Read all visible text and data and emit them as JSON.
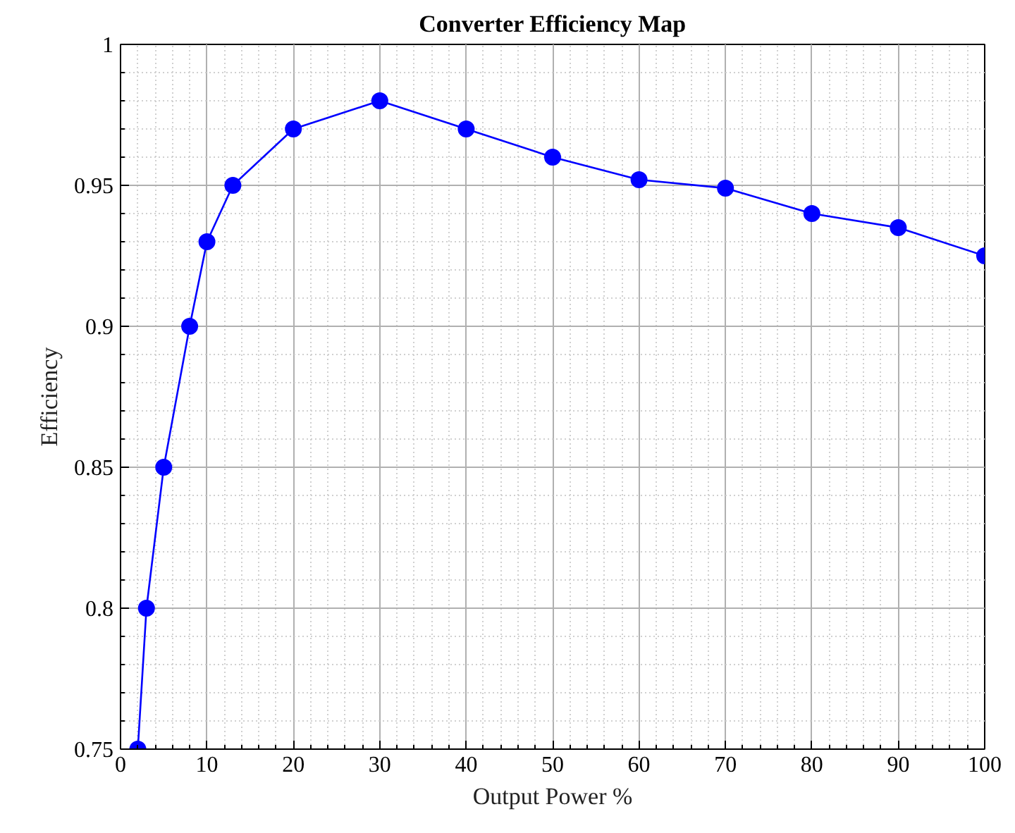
{
  "chart_data": {
    "type": "line",
    "title": "Converter Efficiency Map",
    "xlabel": "Output Power %",
    "ylabel": "Efficiency",
    "x": [
      2,
      3,
      5,
      8,
      10,
      13,
      20,
      30,
      40,
      50,
      60,
      70,
      80,
      90,
      100
    ],
    "series": [
      {
        "color": "#0000ff",
        "values": [
          0.75,
          0.8,
          0.85,
          0.9,
          0.93,
          0.95,
          0.97,
          0.98,
          0.97,
          0.96,
          0.952,
          0.949,
          0.94,
          0.935,
          0.925
        ]
      }
    ],
    "xlim": [
      0,
      100
    ],
    "ylim": [
      0.75,
      1
    ],
    "xticks": [
      0,
      10,
      20,
      30,
      40,
      50,
      60,
      70,
      80,
      90,
      100
    ],
    "yticks": [
      0.75,
      0.8,
      0.85,
      0.9,
      0.95,
      1
    ],
    "grid": true,
    "marker": "circle",
    "line_style": "solid"
  }
}
